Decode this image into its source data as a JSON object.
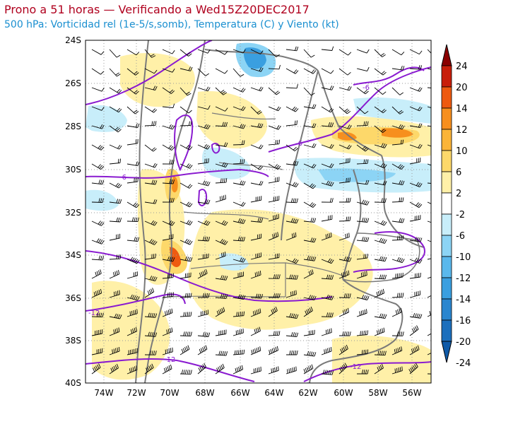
{
  "title": "Prono a 51 horas — Verificando a Wed15Z20DEC2017",
  "subtitle": "500 hPa: Vorticidad rel (1e-5/s,somb), Temperatura (C) y Viento (kt)",
  "lat_labels": [
    "24S",
    "26S",
    "28S",
    "30S",
    "32S",
    "34S",
    "36S",
    "38S",
    "40S"
  ],
  "lon_labels": [
    "74W",
    "72W",
    "70W",
    "68W",
    "66W",
    "64W",
    "62W",
    "60W",
    "58W",
    "56W"
  ],
  "colorbar": {
    "labels": [
      "24",
      "20",
      "14",
      "12",
      "10",
      "6",
      "2",
      "-2",
      "-6",
      "-10",
      "-12",
      "-14",
      "-16",
      "-20",
      "-24"
    ],
    "colors": [
      "#8b0000",
      "#c81e0a",
      "#ee5a10",
      "#f78f1e",
      "#fbb438",
      "#fdd86a",
      "#fff0a8",
      "#ffffff",
      "#c8eefa",
      "#8cd4f5",
      "#5ab8ec",
      "#3a9fe0",
      "#2a86cf",
      "#1c6fbd",
      "#0f5aa8"
    ]
  },
  "contour_labels": [
    "-6",
    "-6",
    "-6",
    "-12",
    "-12",
    "-12"
  ],
  "colors": {
    "title": "#b0001e",
    "subtitle": "#1a8fd0",
    "temperature_contour": "#8a1bd0",
    "borders": "#7a7a7a"
  }
}
